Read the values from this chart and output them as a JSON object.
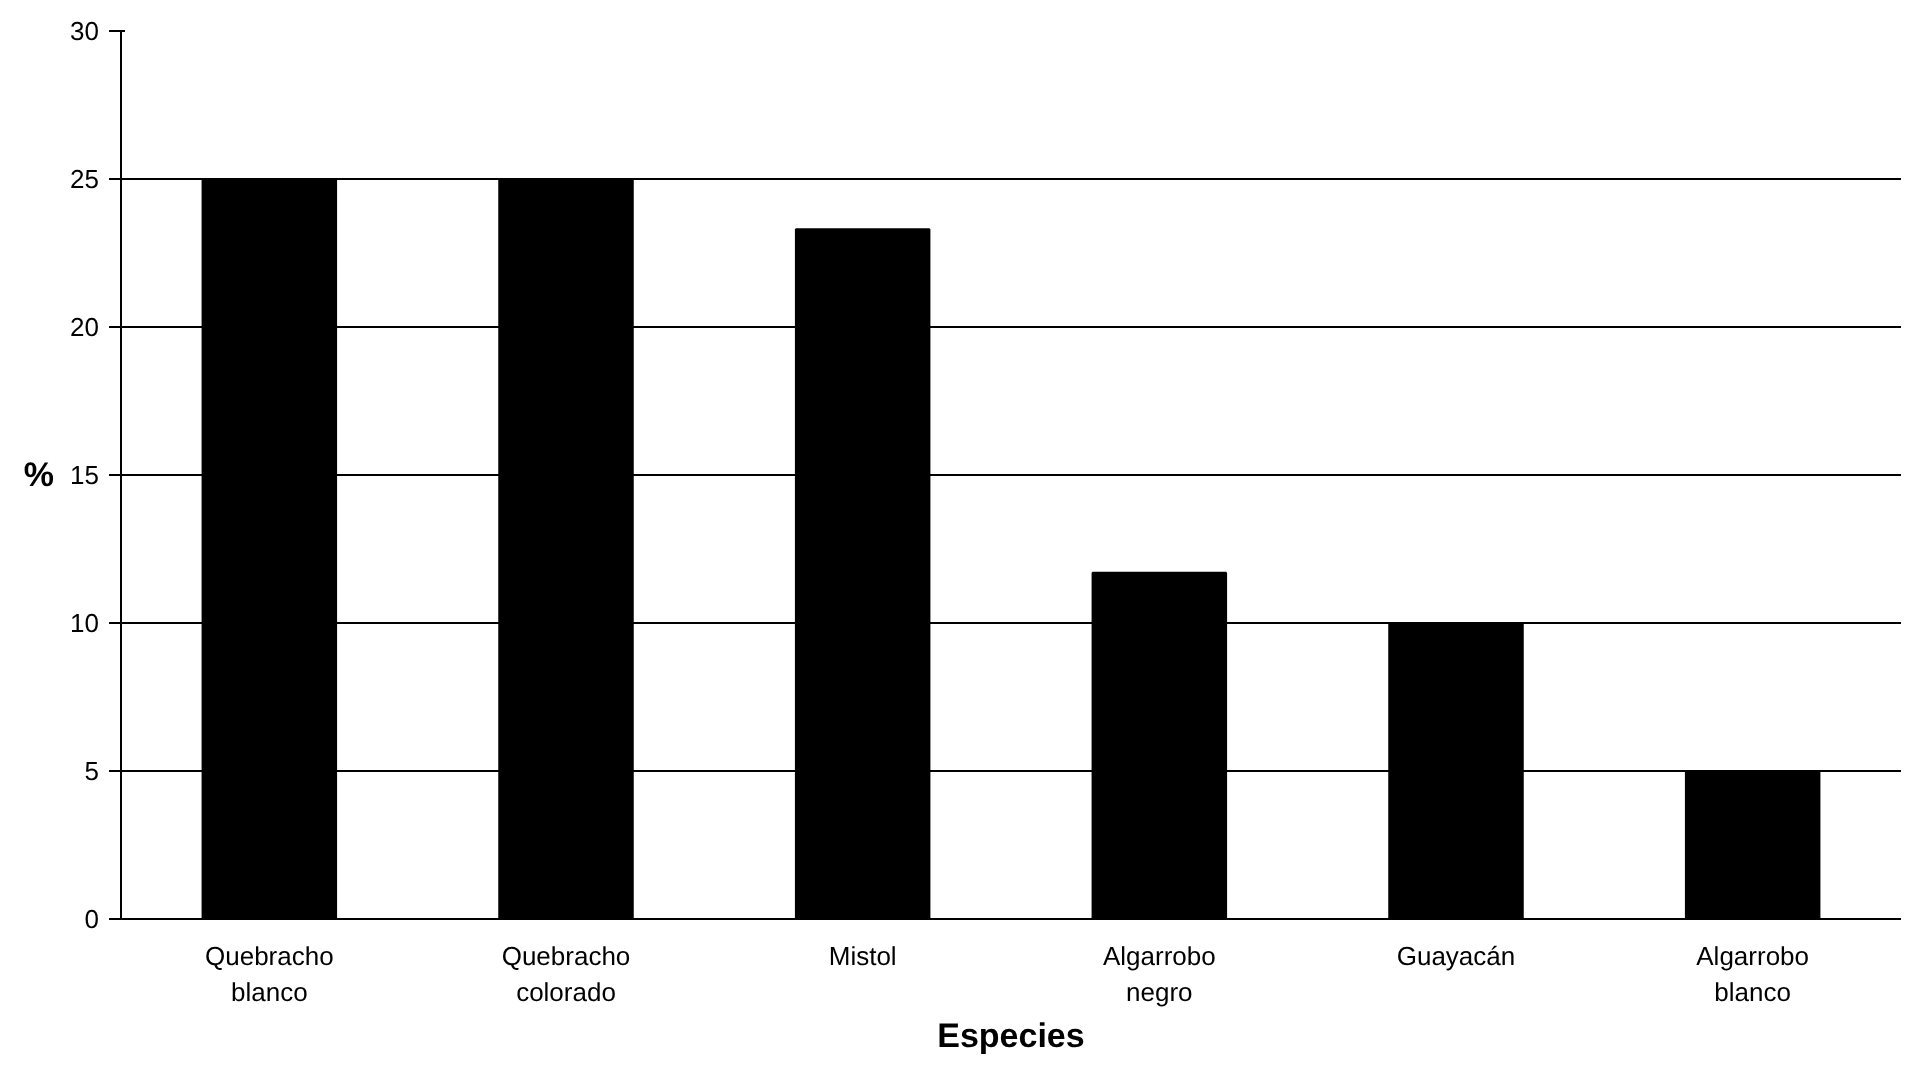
{
  "chart_data": {
    "type": "bar",
    "xlabel": "Especies",
    "ylabel": "%",
    "categories": [
      "Quebracho blanco",
      "Quebracho colorado",
      "Mistol",
      "Algarrobo negro",
      "Guayacán",
      "Algarrobo blanco"
    ],
    "values": [
      25,
      25,
      23.3,
      11.7,
      10,
      5
    ],
    "color": "#000000",
    "ylim": [
      0,
      30
    ],
    "yticks": [
      0,
      5,
      10,
      15,
      20,
      25,
      30
    ],
    "grid": "y"
  }
}
